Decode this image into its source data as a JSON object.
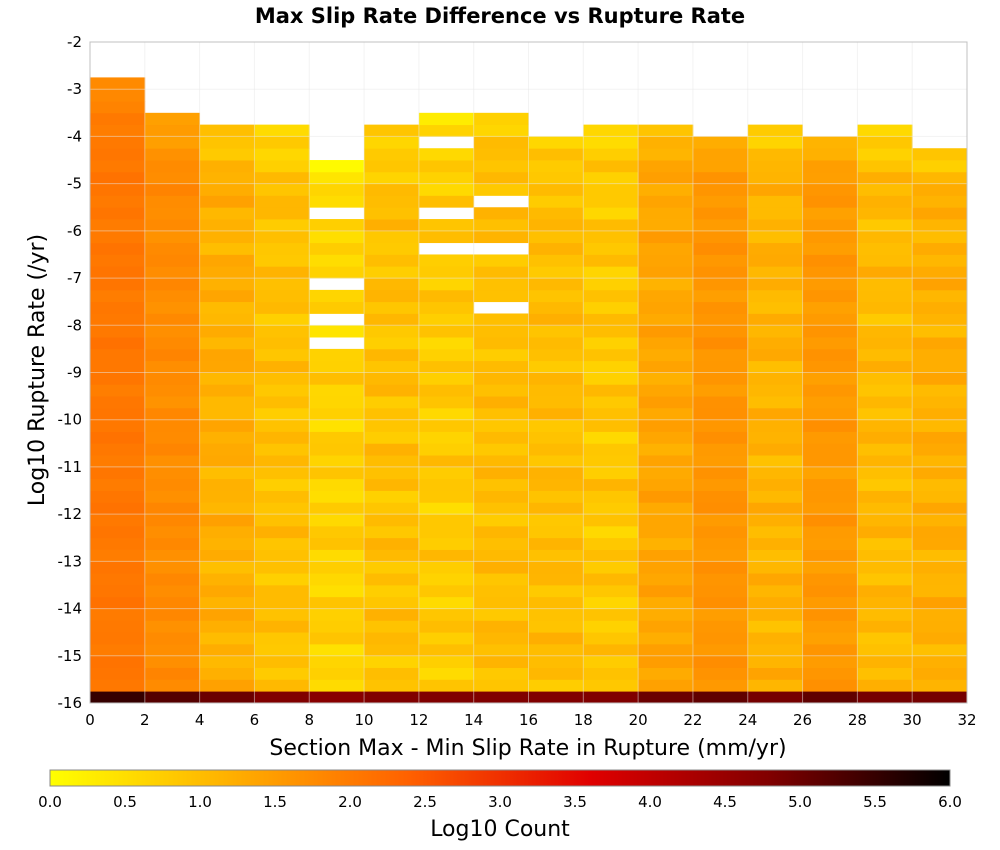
{
  "chart_data": {
    "type": "heatmap",
    "title": "Max Slip Rate Difference vs Rupture Rate",
    "xlabel": "Section Max - Min Slip Rate in Rupture (mm/yr)",
    "ylabel": "Log10 Rupture Rate (/yr)",
    "colorbar_label": "Log10 Count",
    "xlim": [
      0,
      32
    ],
    "ylim": [
      -16,
      -2
    ],
    "x_ticks": [
      "0",
      "2",
      "4",
      "6",
      "8",
      "10",
      "12",
      "14",
      "16",
      "18",
      "20",
      "22",
      "24",
      "26",
      "28",
      "30",
      "32"
    ],
    "y_ticks": [
      "-2",
      "-3",
      "-4",
      "-5",
      "-6",
      "-7",
      "-8",
      "-9",
      "-10",
      "-11",
      "-12",
      "-13",
      "-14",
      "-15",
      "-16"
    ],
    "color_scale": {
      "min": 0.0,
      "max": 6.0,
      "ticks": [
        "0.0",
        "0.5",
        "1.0",
        "1.5",
        "2.0",
        "2.5",
        "3.0",
        "3.5",
        "4.0",
        "4.5",
        "5.0",
        "5.5",
        "6.0"
      ],
      "colors": [
        "#ffff00",
        "#ffb000",
        "#ff6000",
        "#e00000",
        "#800000",
        "#000000"
      ]
    },
    "x_bin_width": 2,
    "y_bin_height": 0.25,
    "y_bottom": -16,
    "columns": [
      {
        "x0": 0,
        "top": -2.75,
        "base": 2.05,
        "amp": 0.1,
        "bottom_row": 5.5,
        "holes": []
      },
      {
        "x0": 2,
        "top": -3.5,
        "base": 1.75,
        "amp": 0.12,
        "bottom_row": 5.2,
        "holes": []
      },
      {
        "x0": 4,
        "top": -3.75,
        "base": 1.2,
        "amp": 0.25,
        "bottom_row": 5.0,
        "holes": []
      },
      {
        "x0": 6,
        "top": -3.75,
        "base": 0.95,
        "amp": 0.25,
        "bottom_row": 4.8,
        "holes": []
      },
      {
        "x0": 8,
        "top": -4.5,
        "base": 0.7,
        "amp": 0.3,
        "bottom_row": 4.7,
        "holes": [
          -5.5,
          -7.0,
          -7.75,
          -8.25
        ]
      },
      {
        "x0": 10,
        "top": -3.75,
        "base": 0.95,
        "amp": 0.3,
        "bottom_row": 4.8,
        "holes": []
      },
      {
        "x0": 12,
        "top": -3.5,
        "base": 0.8,
        "amp": 0.3,
        "bottom_row": 4.8,
        "holes": [
          -4.0,
          -5.5,
          -6.25
        ]
      },
      {
        "x0": 14,
        "top": -3.5,
        "base": 1.0,
        "amp": 0.25,
        "bottom_row": 4.8,
        "holes": [
          -5.25,
          -6.25,
          -7.5
        ]
      },
      {
        "x0": 16,
        "top": -4.0,
        "base": 1.0,
        "amp": 0.25,
        "bottom_row": 4.8,
        "holes": []
      },
      {
        "x0": 18,
        "top": -3.75,
        "base": 0.85,
        "amp": 0.3,
        "bottom_row": 4.8,
        "holes": []
      },
      {
        "x0": 20,
        "top": -3.75,
        "base": 1.35,
        "amp": 0.2,
        "bottom_row": 5.0,
        "holes": []
      },
      {
        "x0": 22,
        "top": -4.0,
        "base": 1.6,
        "amp": 0.15,
        "bottom_row": 5.1,
        "holes": []
      },
      {
        "x0": 24,
        "top": -3.75,
        "base": 1.15,
        "amp": 0.25,
        "bottom_row": 4.9,
        "holes": []
      },
      {
        "x0": 26,
        "top": -4.0,
        "base": 1.55,
        "amp": 0.15,
        "bottom_row": 5.1,
        "holes": []
      },
      {
        "x0": 28,
        "top": -3.75,
        "base": 1.05,
        "amp": 0.25,
        "bottom_row": 4.9,
        "holes": []
      },
      {
        "x0": 30,
        "top": -4.25,
        "base": 1.2,
        "amp": 0.25,
        "bottom_row": 4.9,
        "holes": []
      }
    ]
  }
}
